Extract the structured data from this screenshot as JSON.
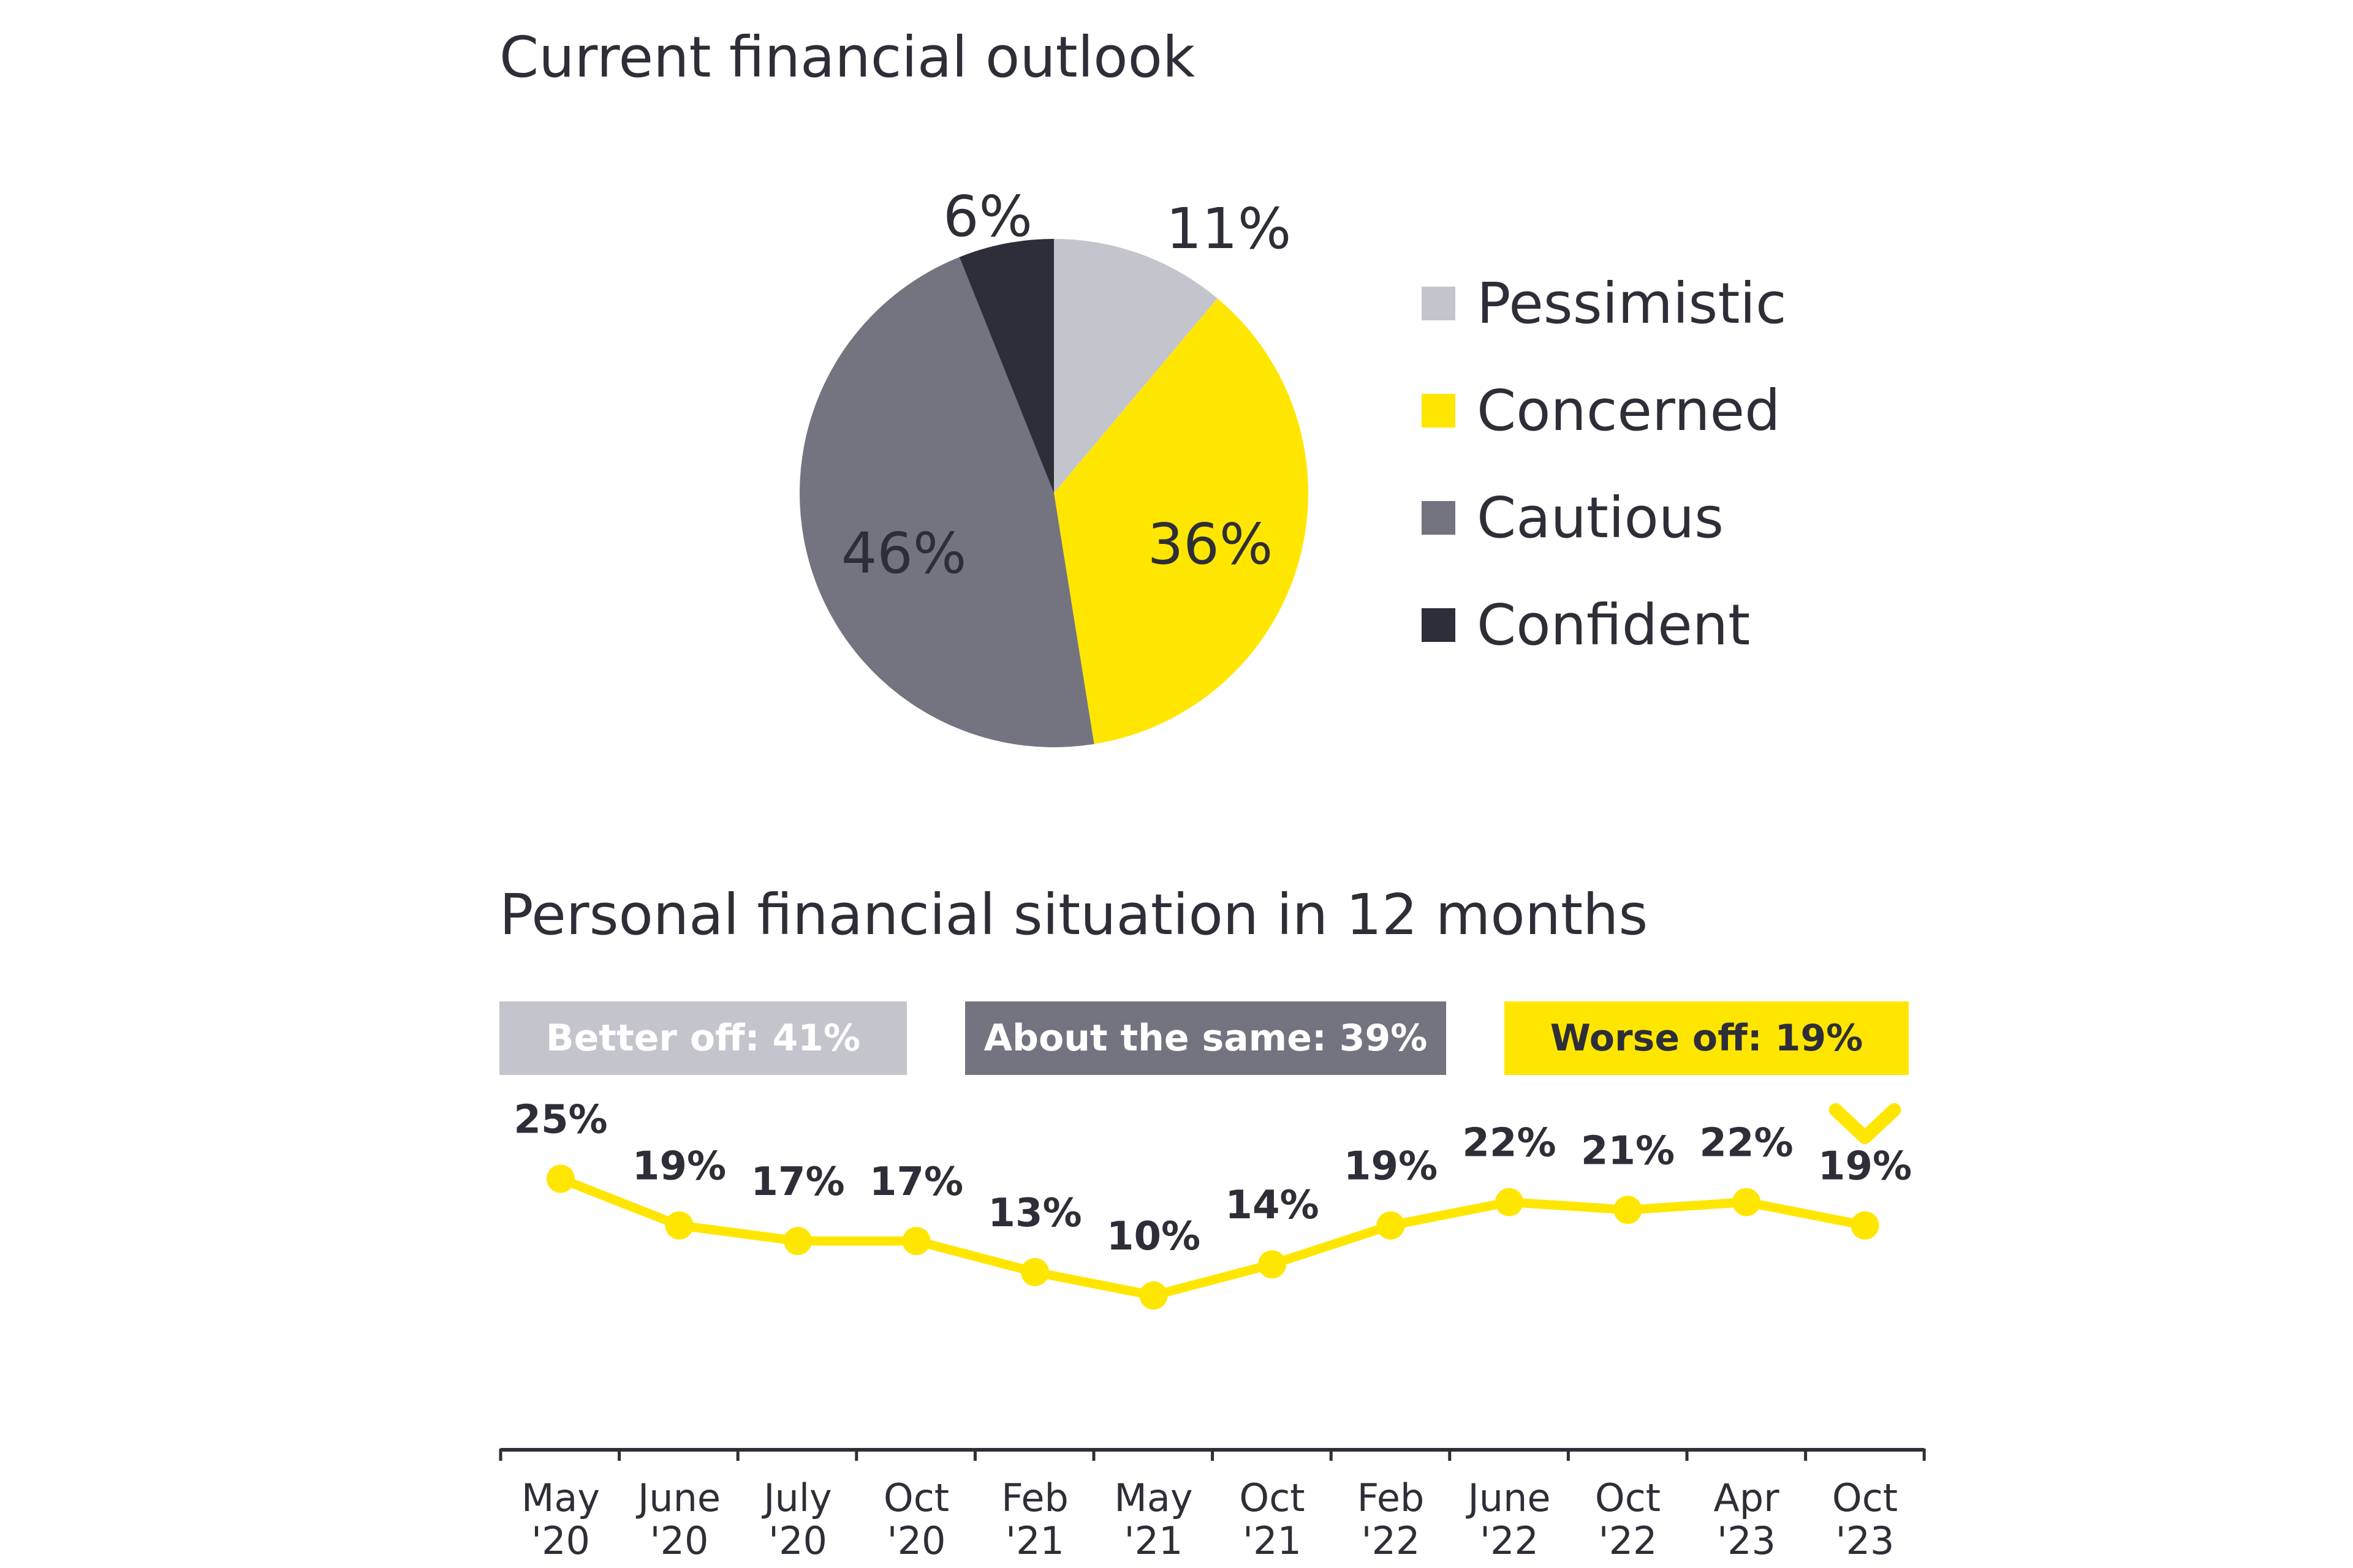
{
  "colors": {
    "text": "#2e2e38",
    "pessimistic": "#c4c4cd",
    "concerned": "#ffe600",
    "cautious": "#747480",
    "confident": "#2e2e38",
    "line": "#ffe600",
    "axis": "#2e2e38"
  },
  "chart_data": [
    {
      "type": "pie",
      "title": "Current financial outlook",
      "slices": [
        {
          "label": "Pessimistic",
          "value": 11,
          "display": "11%",
          "color": "#c4c4cd"
        },
        {
          "label": "Concerned",
          "value": 36,
          "display": "36%",
          "color": "#ffe600"
        },
        {
          "label": "Cautious",
          "value": 46,
          "display": "46%",
          "color": "#747480"
        },
        {
          "label": "Confident",
          "value": 6,
          "display": "6%",
          "color": "#2e2e38"
        }
      ],
      "legend_position": "right"
    },
    {
      "type": "line",
      "title": "Personal financial situation in 12 months",
      "summary_tags": [
        {
          "label": "Better off: 41%",
          "color": "#c4c4cd"
        },
        {
          "label": "About the same: 39%",
          "color": "#747480"
        },
        {
          "label": "Worse off: 19%",
          "color": "#ffe600"
        }
      ],
      "categories": [
        [
          "May",
          "'20"
        ],
        [
          "June",
          "'20"
        ],
        [
          "July",
          "'20"
        ],
        [
          "Oct",
          "'20"
        ],
        [
          "Feb",
          "'21"
        ],
        [
          "May",
          "'21"
        ],
        [
          "Oct",
          "'21"
        ],
        [
          "Feb",
          "'22"
        ],
        [
          "June",
          "'22"
        ],
        [
          "Oct",
          "'22"
        ],
        [
          "Apr",
          "'23"
        ],
        [
          "Oct",
          "'23"
        ]
      ],
      "series": [
        {
          "values": [
            25,
            19,
            17,
            17,
            13,
            10,
            14,
            19,
            22,
            21,
            22,
            19
          ],
          "color": "#ffe600"
        }
      ],
      "data_labels": [
        "25%",
        "19%",
        "17%",
        "17%",
        "13%",
        "10%",
        "14%",
        "19%",
        "22%",
        "21%",
        "22%",
        "19%"
      ],
      "ylim": [
        0,
        30
      ],
      "grid": false
    }
  ]
}
